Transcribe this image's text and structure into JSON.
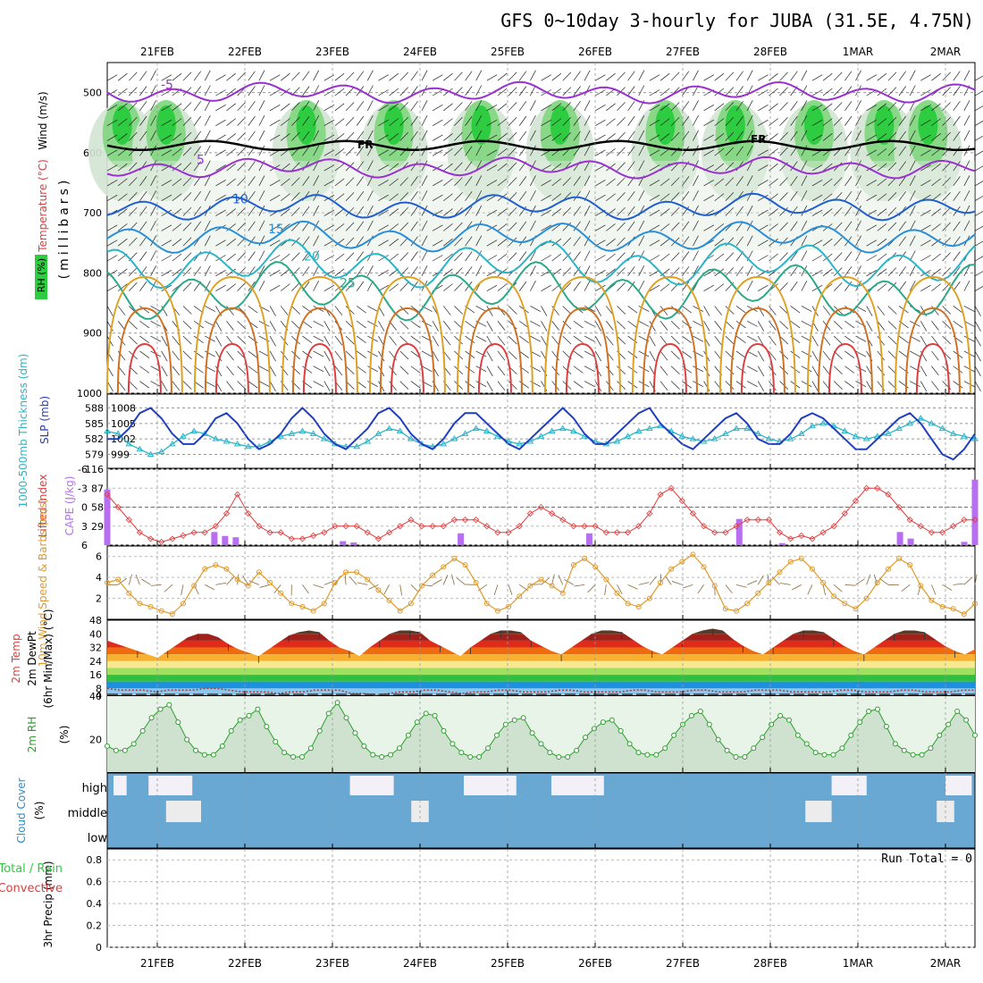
{
  "title": "GFS 0~10day 3-hourly for JUBA (31.5E, 4.75N)",
  "dates": [
    "21FEB",
    "22FEB",
    "23FEB",
    "24FEB",
    "25FEB",
    "26FEB",
    "27FEB",
    "28FEB",
    "1MAR",
    "2MAR"
  ],
  "colors": {
    "rh_green": "#2ecc40",
    "temp_contour": "#9b30d0",
    "slp": "#1f3fbf",
    "thickness": "#2ab5c8",
    "lifted_index": "#e03c3c",
    "cape": "#b86ef0",
    "wind": "#e09a2a",
    "rh2m": "#2e9e2e",
    "cloud": "#6aa8d4",
    "precip_total": "#2ecc40",
    "precip_conv": "#e03c3c"
  },
  "chart_data": [
    {
      "type": "contour",
      "panel": "upper-air cross section",
      "labels": {
        "wind": "Wind (m/s)",
        "temperature": "Temperature (°C)",
        "rh": "RH (%)",
        "pressure_axis": "(millibars)",
        "freezing_level": "FR"
      },
      "pressure_levels": [
        500,
        600,
        700,
        800,
        900,
        1000
      ],
      "ylim": [
        450,
        1000
      ],
      "temperature_contours": [
        -5,
        5,
        10,
        15,
        20,
        25
      ],
      "rh_contour_labels": [
        30,
        50
      ],
      "freezing_level_mb": 588
    },
    {
      "type": "line",
      "panel": "thickness-slp",
      "labels": {
        "thickness": "1000-500mb Thickness (dm)",
        "slp": "SLP (mb)"
      },
      "left_ticks": [
        "588",
        "585",
        "582",
        "579"
      ],
      "right_ticks": [
        "1008",
        "1005",
        "1002",
        "999"
      ],
      "series": [
        {
          "name": "SLP (mb)",
          "values": [
            1002,
            1002,
            1004,
            1007,
            1008,
            1006,
            1003,
            1001,
            1001,
            1003,
            1006,
            1007,
            1005,
            1002,
            1000,
            1001,
            1003,
            1006,
            1008,
            1006,
            1003,
            1001,
            1000,
            1002,
            1004,
            1007,
            1008,
            1006,
            1003,
            1001,
            1000,
            1002,
            1005,
            1007,
            1007,
            1005,
            1003,
            1001,
            1000,
            1002,
            1004,
            1006,
            1008,
            1006,
            1003,
            1001,
            1001,
            1003,
            1005,
            1007,
            1008,
            1005,
            1003,
            1001,
            1000,
            1002,
            1004,
            1006,
            1007,
            1005,
            1002,
            1001,
            1001,
            1003,
            1006,
            1007,
            1006,
            1004,
            1002,
            1000,
            1000,
            1002,
            1004,
            1006,
            1007,
            1005,
            1002,
            999,
            998,
            1000,
            1003
          ]
        },
        {
          "name": "1000-500mb Thickness (dm)",
          "values": [
            583.5,
            583,
            581,
            580,
            579,
            579.5,
            581,
            582.5,
            583.5,
            583,
            582,
            581.5,
            581,
            580.5,
            580.5,
            581.5,
            582.5,
            583,
            583.5,
            583,
            582,
            581,
            580.5,
            580.5,
            581.5,
            583,
            584,
            583.5,
            582,
            581,
            580.5,
            581,
            582,
            583,
            584,
            583.5,
            582.5,
            581.5,
            581,
            581.5,
            582.5,
            583.5,
            584,
            583.5,
            582.5,
            581.5,
            581,
            581.5,
            582.5,
            583.5,
            584,
            584.5,
            583.5,
            582.5,
            582,
            581.5,
            582,
            583,
            584,
            584,
            583,
            582,
            581.5,
            582,
            583,
            584.5,
            585,
            584.5,
            583.5,
            582.5,
            582,
            582.5,
            583,
            584,
            585,
            586,
            585,
            584,
            583,
            582.5,
            582
          ]
        }
      ]
    },
    {
      "type": "line",
      "panel": "lifted-index-cape",
      "labels": {
        "lifted_index": "Lifted Index",
        "cape": "CAPE (J/kg)"
      },
      "left_ticks": [
        "-6",
        "-3",
        "0",
        "3",
        "6"
      ],
      "right_ticks": [
        "116",
        "87",
        "58",
        "29"
      ],
      "series": [
        {
          "name": "Lifted Index",
          "values": [
            -2,
            0,
            2,
            4,
            5,
            5.5,
            5,
            4.5,
            4,
            4,
            3,
            1,
            -2,
            1,
            3,
            4,
            4,
            5,
            5,
            4.5,
            4,
            3,
            3,
            3,
            4,
            5,
            4,
            3,
            2,
            3,
            3,
            3,
            2,
            2,
            2,
            3,
            4,
            4,
            3,
            1,
            0,
            1,
            2,
            3,
            3,
            3,
            4,
            4,
            4,
            3,
            1,
            -2,
            -3,
            -1,
            1,
            3,
            4,
            4,
            3,
            2,
            2,
            2,
            4,
            5,
            4.5,
            5,
            4,
            3,
            1,
            -1,
            -3,
            -3,
            -2,
            0,
            2,
            3,
            4,
            4,
            3,
            2,
            2
          ]
        },
        {
          "name": "CAPE (J/kg)",
          "values": [
            85,
            0,
            0,
            0,
            0,
            0,
            0,
            0,
            0,
            0,
            20,
            14,
            12,
            0,
            0,
            0,
            0,
            0,
            0,
            0,
            0,
            0,
            6,
            4,
            0,
            0,
            1,
            0,
            0,
            0,
            0,
            0,
            0,
            18,
            0,
            0,
            0,
            0,
            0,
            0,
            0,
            0,
            0,
            0,
            0,
            18,
            0,
            0,
            0,
            0,
            0,
            0,
            0,
            0,
            0,
            0,
            0,
            0,
            0,
            40,
            0,
            0,
            0,
            3,
            0,
            0,
            0,
            0,
            0,
            0,
            0,
            0,
            0,
            0,
            20,
            10,
            0,
            0,
            0,
            0,
            5,
            100
          ]
        }
      ]
    },
    {
      "type": "line",
      "panel": "10m wind",
      "labels": {
        "wind": "10m Wind Speed & Barbs (m/s)"
      },
      "ticks": [
        "6",
        "4",
        "2"
      ],
      "series": [
        {
          "name": "10m Wind Speed",
          "values": [
            3.5,
            3.8,
            2.5,
            1.5,
            1.2,
            0.8,
            0.5,
            1.5,
            3.2,
            4.8,
            5.2,
            4.8,
            3.8,
            3.2,
            4.5,
            3.5,
            2.5,
            1.5,
            1.2,
            0.8,
            1.5,
            3.5,
            4.5,
            4.5,
            3.8,
            2.8,
            1.8,
            0.8,
            1.5,
            3.2,
            4.2,
            5.0,
            5.8,
            5.2,
            3.5,
            1.5,
            0.8,
            1.2,
            2.2,
            3.2,
            3.8,
            3.2,
            2.5,
            5.2,
            5.8,
            5.0,
            3.8,
            2.5,
            1.5,
            1.2,
            2.0,
            3.5,
            4.8,
            5.5,
            6.2,
            5.0,
            3.2,
            1.0,
            0.8,
            1.5,
            2.5,
            3.5,
            4.5,
            5.5,
            5.8,
            4.8,
            3.5,
            2.2,
            1.5,
            1.0,
            2.0,
            3.5,
            4.8,
            5.8,
            5.2,
            3.2,
            1.8,
            1.2,
            1.0,
            0.5,
            1.5
          ]
        }
      ]
    },
    {
      "type": "area",
      "panel": "2m temp dewpoint",
      "labels": {
        "temp": "2m Temp",
        "dewpt": "2m DewPt",
        "minmax": "(6hr Min/Max) (°C)"
      },
      "ticks": [
        "48",
        "40",
        "32",
        "24",
        "16",
        "8",
        "4"
      ],
      "temperature_c": [
        36,
        34,
        32,
        30,
        28,
        26,
        30,
        34,
        38,
        40,
        40,
        38,
        34,
        31,
        29,
        27,
        31,
        35,
        39,
        41,
        42,
        41,
        36,
        32,
        30,
        27,
        32,
        36,
        40,
        42,
        42,
        41,
        36,
        33,
        30,
        27,
        32,
        36,
        40,
        42,
        42,
        41,
        36,
        33,
        30,
        28,
        32,
        36,
        40,
        42,
        42,
        41,
        37,
        33,
        30,
        28,
        32,
        36,
        40,
        42,
        43,
        42,
        37,
        33,
        30,
        28,
        32,
        36,
        40,
        42,
        42,
        41,
        37,
        33,
        30,
        28,
        32,
        36,
        40,
        42,
        42,
        41,
        37,
        33,
        30,
        28,
        31
      ],
      "dewpoint_c": [
        8,
        7,
        7,
        7,
        6,
        7,
        7,
        7,
        8,
        8,
        7,
        6,
        6,
        6,
        5,
        6,
        6,
        7,
        7,
        7,
        5,
        5,
        4,
        5,
        6,
        6,
        7,
        7,
        6,
        5,
        6,
        6,
        7,
        7,
        6,
        6,
        6,
        7,
        7,
        6,
        6,
        6,
        6,
        7,
        7,
        6,
        6,
        6,
        7,
        7,
        6,
        6,
        6,
        7,
        7,
        7,
        6,
        6,
        6,
        6,
        7,
        7,
        6,
        6,
        6,
        7,
        7,
        6,
        6,
        6,
        7,
        7
      ]
    },
    {
      "type": "area",
      "panel": "2m RH",
      "labels": {
        "rh": "2m RH",
        "unit": "(%)"
      },
      "ticks": [
        "40",
        "20"
      ],
      "values": [
        17,
        15,
        15,
        18,
        24,
        30,
        34,
        36,
        28,
        20,
        15,
        13,
        13,
        17,
        24,
        29,
        31,
        34,
        26,
        19,
        14,
        12,
        12,
        16,
        24,
        32,
        37,
        30,
        23,
        17,
        13,
        12,
        13,
        16,
        22,
        28,
        32,
        31,
        24,
        18,
        14,
        12,
        12,
        16,
        22,
        27,
        29,
        30,
        23,
        18,
        14,
        12,
        12,
        15,
        21,
        25,
        28,
        29,
        24,
        18,
        14,
        13,
        13,
        16,
        22,
        27,
        31,
        33,
        27,
        20,
        15,
        12,
        12,
        16,
        21,
        27,
        31,
        29,
        22,
        18,
        14,
        13,
        13,
        16,
        22,
        28,
        33,
        34,
        26,
        18,
        15,
        13,
        13,
        16,
        22,
        27,
        33,
        29,
        22
      ]
    },
    {
      "type": "bar",
      "panel": "cloud cover",
      "labels": {
        "cloud": "Cloud Cover",
        "unit": "(%)",
        "high": "high",
        "middle": "middle",
        "low": "low"
      }
    },
    {
      "type": "bar",
      "panel": "precipitation",
      "labels": {
        "precip": "3hr Precip (mm)",
        "total_rain": "Total / Rain",
        "convective": "Convective",
        "run_total": "Run Total = 0"
      },
      "ticks": [
        "0.8",
        "0.6",
        "0.4",
        "0.2",
        "0"
      ],
      "ylim": [
        0,
        0.9
      ],
      "values": []
    }
  ]
}
